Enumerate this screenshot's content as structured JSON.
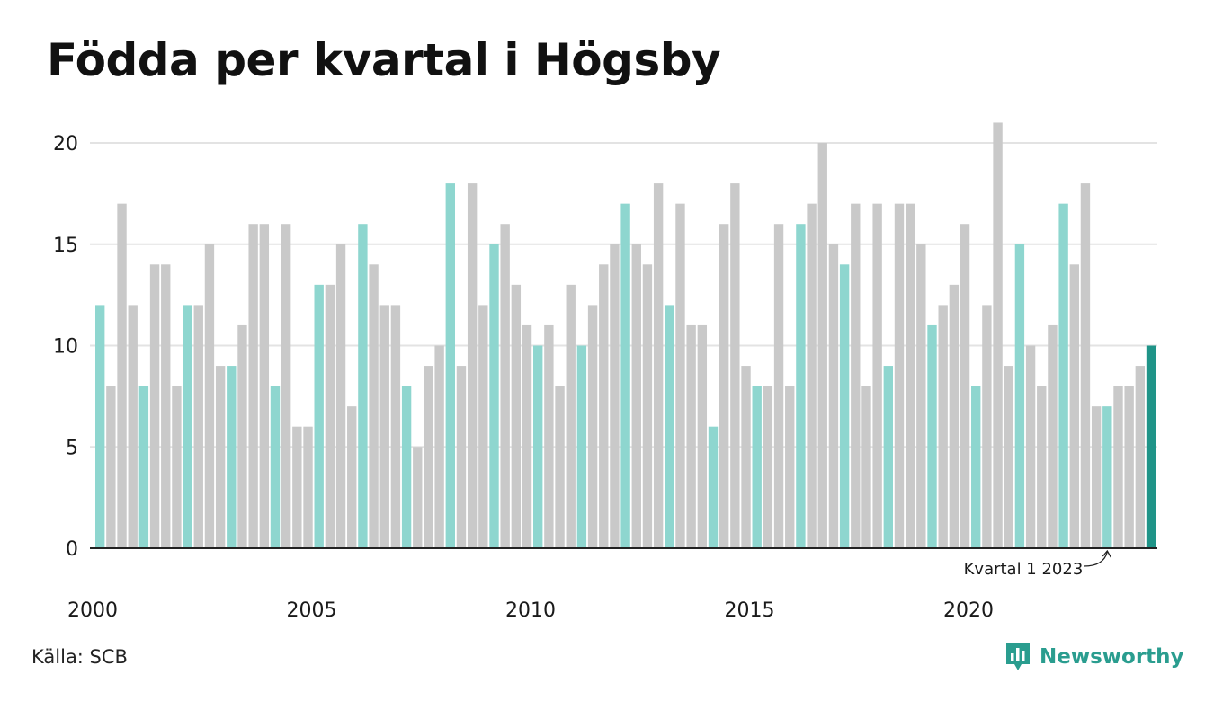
{
  "title": "Födda per kvartal i Högsby",
  "source": "Källa: SCB",
  "brand": {
    "name": "Newsworthy",
    "icon": "newsworthy-logo-icon"
  },
  "colors": {
    "q1": "#8ed6cf",
    "other": "#c9c9c9",
    "highlight": "#1f9488",
    "grid": "#e3e3e3",
    "axis": "#222222",
    "text": "#1a1a1a"
  },
  "chart_data": {
    "type": "bar",
    "title": "Födda per kvartal i Högsby",
    "xlabel": "",
    "ylabel": "",
    "ylim": [
      0,
      21
    ],
    "yticks": [
      0,
      5,
      10,
      15,
      20
    ],
    "xtick_labels": [
      "2000",
      "2005",
      "2010",
      "2015",
      "2020"
    ],
    "grid": true,
    "quarters_per_year": 4,
    "start_year": 2000,
    "values": [
      12,
      8,
      17,
      12,
      8,
      14,
      14,
      8,
      12,
      12,
      15,
      9,
      9,
      11,
      16,
      16,
      8,
      16,
      6,
      6,
      13,
      13,
      15,
      7,
      16,
      14,
      12,
      12,
      8,
      5,
      9,
      10,
      18,
      9,
      18,
      12,
      15,
      16,
      13,
      11,
      10,
      11,
      8,
      13,
      10,
      12,
      14,
      15,
      17,
      15,
      14,
      18,
      12,
      17,
      11,
      11,
      6,
      16,
      18,
      9,
      8,
      8,
      16,
      8,
      16,
      17,
      20,
      15,
      14,
      17,
      8,
      17,
      9,
      17,
      17,
      15,
      11,
      12,
      13,
      16,
      8,
      12,
      21,
      9,
      15,
      10,
      8,
      11,
      17,
      14,
      18,
      7,
      7,
      8,
      8,
      9,
      10
    ],
    "annotation": {
      "label": "Kvartal 1 2023",
      "index": 92
    }
  }
}
